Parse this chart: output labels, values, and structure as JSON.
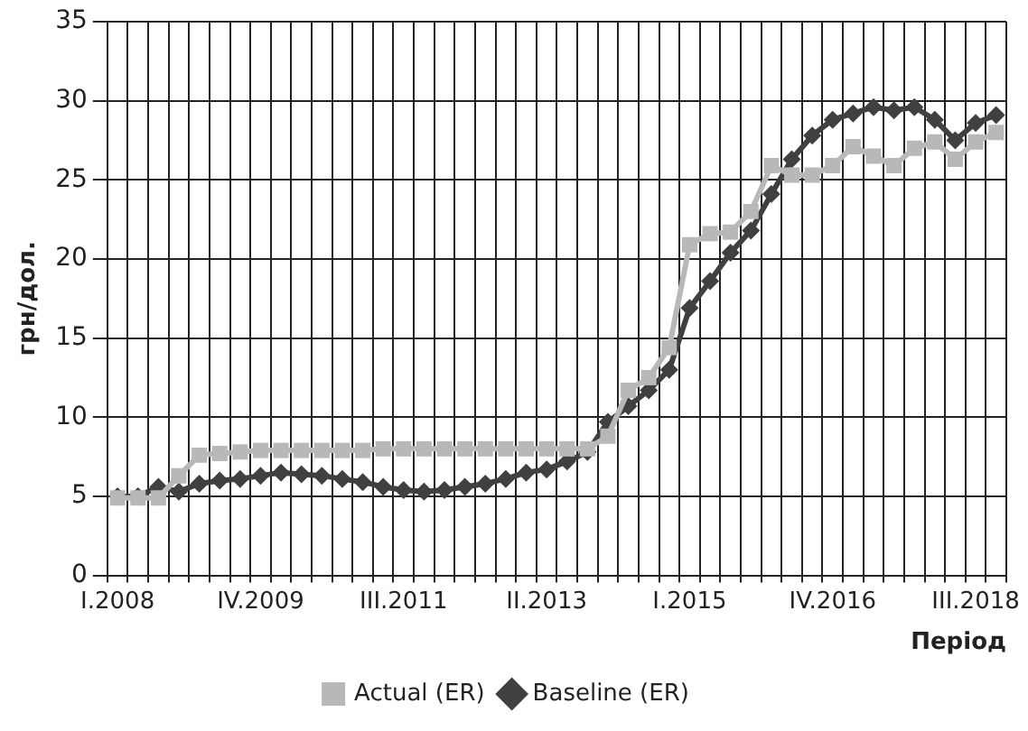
{
  "chart_data": {
    "type": "line",
    "xlabel": "Період",
    "ylabel": "грн/дол.",
    "categories": [
      "I.2008",
      null,
      null,
      null,
      null,
      null,
      null,
      "IV.2009",
      null,
      null,
      null,
      null,
      null,
      null,
      "III.2011",
      null,
      null,
      null,
      null,
      null,
      null,
      "II.2013",
      null,
      null,
      null,
      null,
      null,
      null,
      "I.2015",
      null,
      null,
      null,
      null,
      null,
      null,
      "IV.2016",
      null,
      null,
      null,
      null,
      null,
      null,
      "III.2018",
      null
    ],
    "series": [
      {
        "name": "Baseline (ER)",
        "color": "#404040",
        "marker": "diamond",
        "values": [
          5.0,
          5.0,
          5.6,
          5.3,
          5.8,
          6.0,
          6.1,
          6.3,
          6.5,
          6.4,
          6.3,
          6.1,
          5.9,
          5.6,
          5.4,
          5.3,
          5.4,
          5.6,
          5.8,
          6.1,
          6.5,
          6.7,
          7.2,
          7.8,
          9.7,
          10.7,
          11.7,
          13.0,
          16.9,
          18.6,
          20.4,
          21.8,
          24.1,
          26.3,
          27.8,
          28.8,
          29.2,
          29.6,
          29.4,
          29.6,
          28.8,
          27.5,
          28.6,
          29.1
        ]
      },
      {
        "name": "Actual (ER)",
        "color": "#b8b8b8",
        "marker": "square",
        "values": [
          4.9,
          4.9,
          4.9,
          6.3,
          7.6,
          7.7,
          7.8,
          7.9,
          7.9,
          7.9,
          7.9,
          7.9,
          7.9,
          8.0,
          8.0,
          8.0,
          8.0,
          8.0,
          8.0,
          8.0,
          8.0,
          8.0,
          8.0,
          8.0,
          8.8,
          11.7,
          12.5,
          14.4,
          20.9,
          21.6,
          21.7,
          23.0,
          25.9,
          25.3,
          25.3,
          25.9,
          27.1,
          26.5,
          25.9,
          27.0,
          27.4,
          26.3,
          27.4,
          28.0
        ]
      }
    ],
    "ylim": [
      0,
      35
    ],
    "yticks": [
      0,
      5,
      10,
      15,
      20,
      25,
      30,
      35
    ],
    "grid": true,
    "legend": "bottom",
    "line_style": "solid"
  }
}
